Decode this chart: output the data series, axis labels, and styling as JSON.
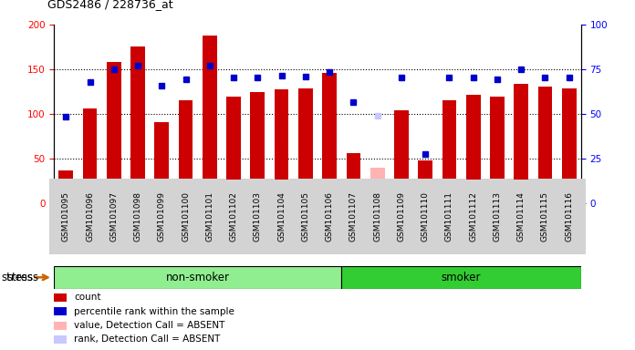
{
  "title": "GDS2486 / 228736_at",
  "samples": [
    "GSM101095",
    "GSM101096",
    "GSM101097",
    "GSM101098",
    "GSM101099",
    "GSM101100",
    "GSM101101",
    "GSM101102",
    "GSM101103",
    "GSM101104",
    "GSM101105",
    "GSM101106",
    "GSM101107",
    "GSM101108",
    "GSM101109",
    "GSM101110",
    "GSM101111",
    "GSM101112",
    "GSM101113",
    "GSM101114",
    "GSM101115",
    "GSM101116"
  ],
  "bar_values": [
    36,
    106,
    158,
    175,
    91,
    115,
    188,
    119,
    124,
    127,
    128,
    146,
    56,
    40,
    104,
    48,
    115,
    121,
    119,
    133,
    130,
    128
  ],
  "bar_colors": [
    "#cc0000",
    "#cc0000",
    "#cc0000",
    "#cc0000",
    "#cc0000",
    "#cc0000",
    "#cc0000",
    "#cc0000",
    "#cc0000",
    "#cc0000",
    "#cc0000",
    "#cc0000",
    "#cc0000",
    "#ffb3b3",
    "#cc0000",
    "#cc0000",
    "#cc0000",
    "#cc0000",
    "#cc0000",
    "#cc0000",
    "#cc0000",
    "#cc0000"
  ],
  "rank_values": [
    48.5,
    68,
    75,
    77,
    65.5,
    69.5,
    77,
    70.5,
    70.5,
    71.5,
    71,
    73.5,
    56.5,
    49,
    70.5,
    27.5,
    70.5,
    70.5,
    69.5,
    75,
    70.5,
    70.5
  ],
  "rank_colors": [
    "#0000cc",
    "#0000cc",
    "#0000cc",
    "#0000cc",
    "#0000cc",
    "#0000cc",
    "#0000cc",
    "#0000cc",
    "#0000cc",
    "#0000cc",
    "#0000cc",
    "#0000cc",
    "#0000cc",
    "#c8c8ff",
    "#0000cc",
    "#0000cc",
    "#0000cc",
    "#0000cc",
    "#0000cc",
    "#0000cc",
    "#0000cc",
    "#0000cc"
  ],
  "non_smoker_count": 12,
  "smoker_count": 10,
  "ylim_left": [
    0,
    200
  ],
  "ylim_right": [
    0,
    100
  ],
  "yticks_left": [
    0,
    50,
    100,
    150,
    200
  ],
  "yticks_right": [
    0,
    25,
    50,
    75,
    100
  ],
  "bg_color": "#ffffff",
  "plot_bg_color": "#ffffff",
  "tick_label_bg": "#d3d3d3",
  "non_smoker_color": "#90ee90",
  "smoker_color": "#32cd32",
  "stress_arrow_color": "#cc6600",
  "bar_width": 0.6,
  "legend_items": [
    {
      "color": "#cc0000",
      "label": "count"
    },
    {
      "color": "#0000cc",
      "label": "percentile rank within the sample"
    },
    {
      "color": "#ffb3b3",
      "label": "value, Detection Call = ABSENT"
    },
    {
      "color": "#c8c8ff",
      "label": "rank, Detection Call = ABSENT"
    }
  ]
}
